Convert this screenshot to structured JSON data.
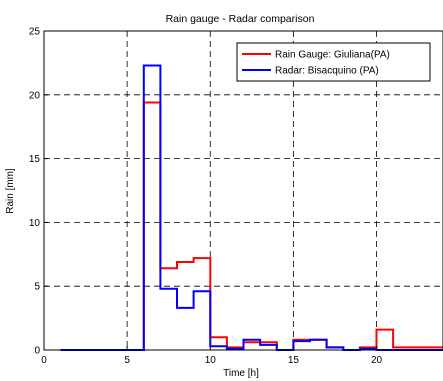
{
  "chart_data": {
    "type": "line",
    "step": true,
    "title": "Rain gauge - Radar comparison",
    "xlabel": "Time [h]",
    "ylabel": "Rain [mm]",
    "xlim": [
      0,
      24
    ],
    "ylim": [
      0,
      25
    ],
    "xticks": [
      0,
      5,
      10,
      15,
      20
    ],
    "yticks": [
      0,
      5,
      10,
      15,
      20,
      25
    ],
    "grid": true,
    "legend_position": "top-right",
    "x_edges": [
      1,
      2,
      3,
      4,
      5,
      6,
      7,
      8,
      9,
      10,
      11,
      12,
      13,
      14,
      15,
      16,
      17,
      18,
      19,
      20,
      21,
      22,
      23,
      24
    ],
    "series": [
      {
        "name": "Rain Gauge: Giuliana(PA)",
        "color": "#ff0000",
        "values": [
          0,
          0,
          0,
          0,
          0,
          19.4,
          6.4,
          6.9,
          7.2,
          1.0,
          0.2,
          0.6,
          0.6,
          0,
          0.8,
          0.8,
          0.2,
          0,
          0.2,
          1.6,
          0.2,
          0.2,
          0.2
        ]
      },
      {
        "name": "Radar: Bisacquino (PA)",
        "color": "#0000ff",
        "values": [
          0,
          0,
          0,
          0,
          0,
          22.3,
          4.8,
          3.3,
          4.6,
          0.3,
          0.1,
          0.8,
          0.4,
          0,
          0.7,
          0.8,
          0.2,
          0,
          0.1,
          0,
          0,
          0,
          0
        ]
      }
    ]
  }
}
